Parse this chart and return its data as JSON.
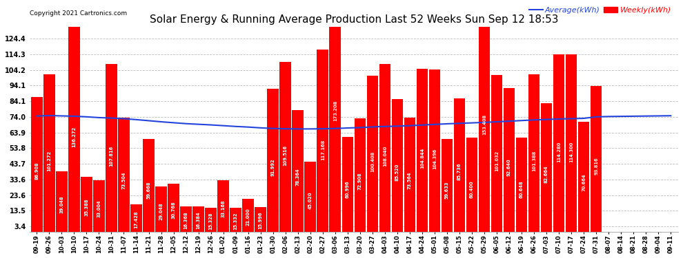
{
  "title": "Solar Energy & Running Average Production Last 52 Weeks Sun Sep 12 18:53",
  "copyright": "Copyright 2021 Cartronics.com",
  "legend_avg": "Average(kWh)",
  "legend_weekly": "Weekly(kWh)",
  "categories": [
    "09-19",
    "09-26",
    "10-03",
    "10-10",
    "10-17",
    "10-24",
    "10-31",
    "11-07",
    "11-14",
    "11-21",
    "11-28",
    "12-05",
    "12-12",
    "12-19",
    "12-26",
    "01-02",
    "01-09",
    "01-16",
    "01-23",
    "01-30",
    "02-06",
    "02-13",
    "02-20",
    "02-27",
    "03-06",
    "03-13",
    "03-20",
    "03-27",
    "04-03",
    "04-10",
    "04-17",
    "04-24",
    "05-01",
    "05-08",
    "05-15",
    "05-22",
    "05-29",
    "06-05",
    "06-12",
    "06-19",
    "06-26",
    "07-03",
    "07-10",
    "07-17",
    "07-24",
    "07-31",
    "08-07",
    "08-14",
    "08-21",
    "08-28",
    "09-04",
    "09-11"
  ],
  "weekly_values": [
    86.908,
    101.272,
    39.048,
    136.272,
    35.388,
    33.004,
    107.816,
    73.504,
    17.428,
    59.668,
    29.048,
    30.768,
    16.368,
    16.384,
    15.328,
    33.168,
    15.332,
    21.0,
    15.996,
    91.992,
    109.516,
    78.364,
    45.02,
    117.168,
    173.208,
    60.996,
    72.908,
    100.408,
    108.04,
    85.52,
    73.564,
    104.844,
    104.396,
    59.633,
    85.736,
    60.4,
    153.408,
    101.032,
    92.64,
    60.648,
    101.388,
    82.664,
    114.28,
    114.3,
    70.664,
    93.816,
    0.0,
    0.0,
    0.0,
    0.0,
    0.0,
    0.0
  ],
  "weekly_values_display": [
    86.908,
    101.272,
    39.048,
    136.272,
    35.388,
    33.004,
    107.816,
    73.504,
    17.428,
    59.668,
    29.048,
    30.768,
    16.368,
    16.384,
    15.328,
    33.168,
    15.332,
    21.0,
    15.996,
    91.992,
    109.516,
    78.364,
    45.02,
    117.168,
    173.208,
    60.996,
    72.908,
    100.408,
    108.04,
    85.52,
    73.564,
    104.844,
    104.396,
    59.633,
    85.736,
    60.4,
    153.408,
    101.032,
    92.64,
    60.648,
    101.388,
    82.664,
    114.28,
    114.3,
    70.664,
    93.816
  ],
  "avg_values": [
    74.5,
    74.8,
    74.6,
    74.4,
    74.0,
    73.5,
    73.2,
    72.8,
    72.2,
    71.5,
    70.8,
    70.2,
    69.6,
    69.2,
    68.8,
    68.3,
    67.8,
    67.4,
    66.9,
    66.5,
    66.3,
    66.2,
    66.2,
    66.3,
    66.5,
    66.8,
    67.1,
    67.5,
    67.8,
    68.0,
    68.3,
    68.7,
    69.1,
    69.5,
    69.8,
    70.1,
    70.4,
    70.8,
    71.2,
    71.6,
    72.0,
    72.3,
    72.6,
    72.8,
    73.0,
    74.0,
    74.2,
    74.3,
    74.4,
    74.5,
    74.6,
    74.7
  ],
  "bar_color": "#ff0000",
  "avg_line_color": "#2244dd",
  "background_color": "#ffffff",
  "grid_color": "#bbbbbb",
  "yticks": [
    3.4,
    13.5,
    23.6,
    33.6,
    43.7,
    53.8,
    63.9,
    74.0,
    84.1,
    94.1,
    104.2,
    114.3,
    124.4
  ],
  "ylim": [
    0,
    132
  ],
  "title_fontsize": 11,
  "copyright_fontsize": 6.5,
  "xtick_fontsize": 6,
  "ytick_fontsize": 7,
  "bar_label_fontsize": 4.8,
  "legend_fontsize": 8
}
